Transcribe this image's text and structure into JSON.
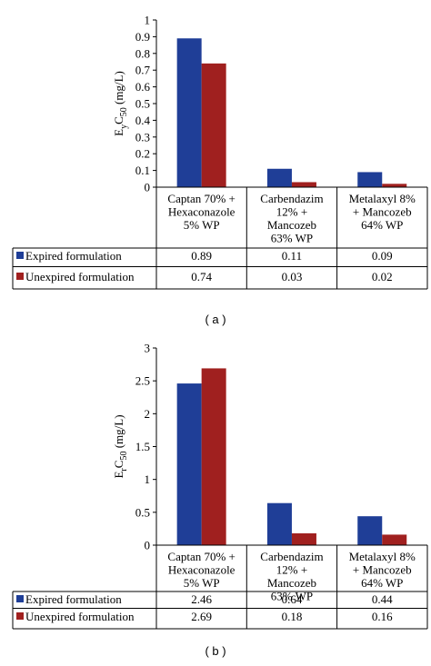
{
  "chart_data": [
    {
      "type": "bar",
      "panel_label": "( a )",
      "ylabel_main": "E",
      "ylabel_sub1": "y",
      "ylabel_mid": "C",
      "ylabel_sub2": "50",
      "ylabel_unit": " (mg/L)",
      "ylim": [
        0,
        1
      ],
      "yticks": [
        "0",
        "0.1",
        "0.2",
        "0.3",
        "0.4",
        "0.5",
        "0.6",
        "0.7",
        "0.8",
        "0.9",
        "1"
      ],
      "grid": false,
      "categories": [
        [
          "Captan 70% +",
          "Hexaconazole",
          "5% WP"
        ],
        [
          "Carbendazim",
          "12% +",
          "Mancozeb",
          "63% WP"
        ],
        [
          "Metalaxyl 8%",
          "+ Mancozeb",
          "64% WP"
        ]
      ],
      "series": [
        {
          "name": "Expired formulation",
          "color": "#1f3e97",
          "values": [
            0.89,
            0.11,
            0.09
          ],
          "labels": [
            "0.89",
            "0.11",
            "0.09"
          ]
        },
        {
          "name": "Unexpired formulation",
          "color": "#a0201f",
          "values": [
            0.74,
            0.03,
            0.02
          ],
          "labels": [
            "0.74",
            "0.03",
            "0.02"
          ]
        }
      ]
    },
    {
      "type": "bar",
      "panel_label": "( b )",
      "ylabel_main": "E",
      "ylabel_sub1": "r",
      "ylabel_mid": "C",
      "ylabel_sub2": "50",
      "ylabel_unit": " (mg/L)",
      "ylim": [
        0,
        3
      ],
      "yticks": [
        "0",
        "0.5",
        "1",
        "1.5",
        "2",
        "2.5",
        "3"
      ],
      "grid": false,
      "categories": [
        [
          "Captan 70% +",
          "Hexaconazole",
          "5% WP"
        ],
        [
          "Carbendazim",
          "12% +",
          "Mancozeb",
          "63% WP"
        ],
        [
          "Metalaxyl 8%",
          "+ Mancozeb",
          "64% WP"
        ]
      ],
      "series": [
        {
          "name": "Expired formulation",
          "color": "#1f3e97",
          "values": [
            2.46,
            0.64,
            0.44
          ],
          "labels": [
            "2.46",
            "0.64",
            "0.44"
          ]
        },
        {
          "name": "Unexpired formulation",
          "color": "#a0201f",
          "values": [
            2.69,
            0.18,
            0.16
          ],
          "labels": [
            "2.69",
            "0.18",
            "0.16"
          ]
        }
      ]
    }
  ]
}
